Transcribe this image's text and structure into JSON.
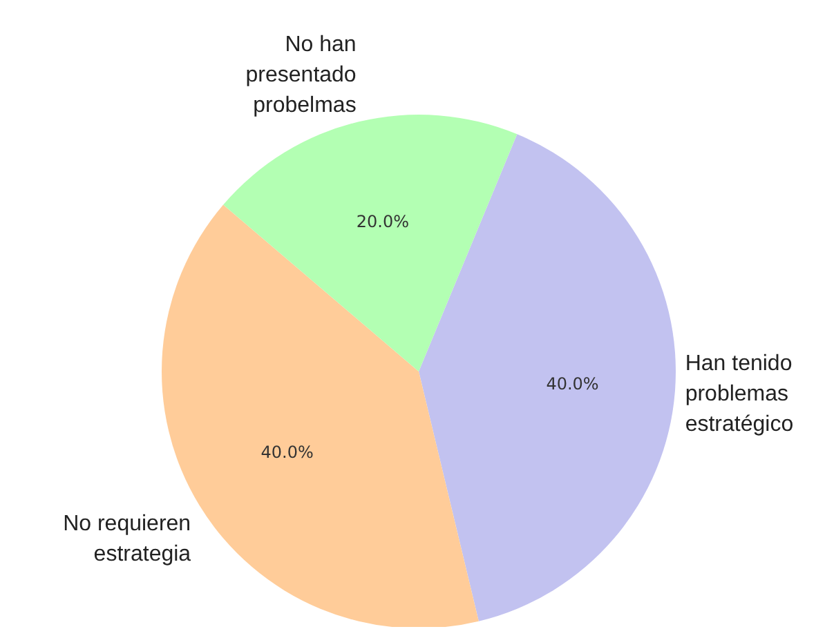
{
  "chart_data": {
    "type": "pie",
    "categories": [
      "Han tenido\nproblemas\nestratégico",
      "No requieren\nestrategia",
      "No han\npresentado\nprobelmas"
    ],
    "values": [
      40,
      40,
      20
    ],
    "colors": [
      "#c2c2f0",
      "#ffcc99",
      "#b3ffb3"
    ],
    "value_labels": [
      "40.0%",
      "40.0%",
      "20.0%"
    ],
    "legend": false
  }
}
